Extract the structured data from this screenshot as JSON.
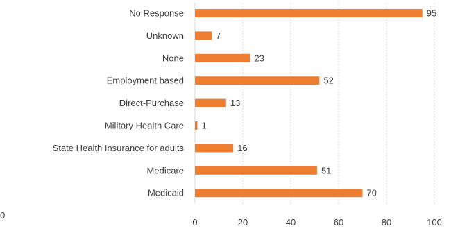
{
  "chart_data": {
    "type": "bar",
    "orientation": "horizontal",
    "title": "",
    "xlabel": "",
    "ylabel": "",
    "categories": [
      "No Response",
      "Unknown",
      "None",
      "Employment based",
      "Direct-Purchase",
      "Military Health Care",
      "State Health Insurance for adults",
      "Medicare",
      "Medicaid"
    ],
    "values": [
      95,
      7,
      23,
      52,
      13,
      1,
      16,
      51,
      70
    ],
    "xlim": [
      0,
      100
    ],
    "x_ticks": [
      "0",
      "20",
      "40",
      "60",
      "80",
      "100"
    ],
    "grid": "vertical dashed",
    "data_labels": true,
    "bar_color": "#ED7D31",
    "stray_label": "0"
  }
}
